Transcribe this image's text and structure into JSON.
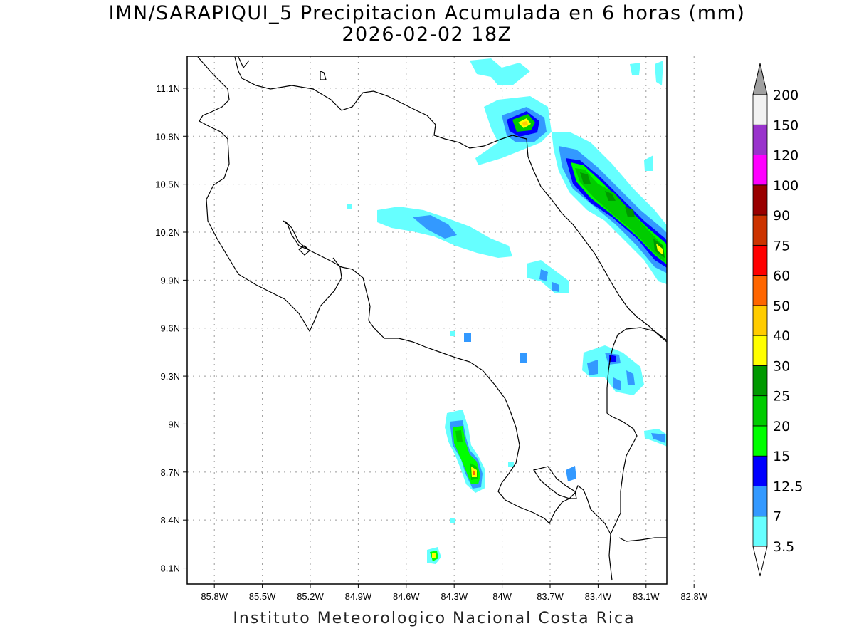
{
  "title": {
    "line1": "IMN/SARAPIQUI_5 Precipitacion Acumulada en 6 horas (mm)",
    "line2": "2026-02-02 18Z"
  },
  "footer": "Instituto Meteorologico Nacional Costa Rica",
  "map": {
    "lon_range": [
      -85.97,
      -82.97
    ],
    "lat_range": [
      8.0,
      11.3
    ],
    "lon_ticks": [
      "85.8W",
      "85.5W",
      "85.2W",
      "84.9W",
      "84.6W",
      "84.3W",
      "84W",
      "83.7W",
      "83.4W",
      "83.1W",
      "82.8W"
    ],
    "lon_tick_values": [
      -85.8,
      -85.5,
      -85.2,
      -84.9,
      -84.6,
      -84.3,
      -84.0,
      -83.7,
      -83.4,
      -83.1,
      -82.8
    ],
    "lat_ticks": [
      "8.1N",
      "8.4N",
      "8.7N",
      "9N",
      "9.3N",
      "9.6N",
      "9.9N",
      "10.2N",
      "10.5N",
      "10.8N",
      "11.1N"
    ],
    "lat_tick_values": [
      8.1,
      8.4,
      8.7,
      9.0,
      9.3,
      9.6,
      9.9,
      10.2,
      10.5,
      10.8,
      11.1
    ],
    "grid": true
  },
  "colorbar": {
    "labels": [
      "3.5",
      "7",
      "12.5",
      "15",
      "20",
      "25",
      "30",
      "40",
      "50",
      "60",
      "75",
      "90",
      "100",
      "120",
      "150",
      "200"
    ],
    "colors": [
      "#66ffff",
      "#3399ff",
      "#0000ff",
      "#00ff00",
      "#00cc00",
      "#009900",
      "#ffff00",
      "#ffcc00",
      "#ff6600",
      "#ff0000",
      "#cc3300",
      "#990000",
      "#ff00ff",
      "#9933cc",
      "#f2f2f2"
    ],
    "over_color": "#a0a0a0",
    "under_color": "#ffffff"
  }
}
